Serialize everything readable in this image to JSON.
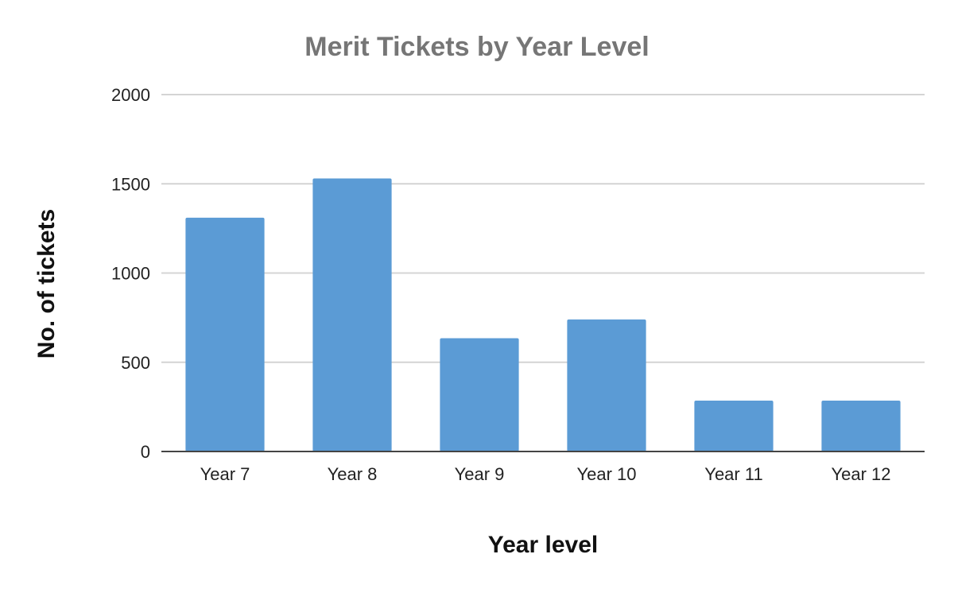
{
  "chart_data": {
    "type": "bar",
    "title": "Merit Tickets by Year Level",
    "xlabel": "Year level",
    "ylabel": "No. of tickets",
    "categories": [
      "Year 7",
      "Year 8",
      "Year 9",
      "Year 10",
      "Year 11",
      "Year 12"
    ],
    "values": [
      1310,
      1530,
      635,
      740,
      285,
      285
    ],
    "ylim": [
      0,
      2000
    ],
    "yticks": [
      "0",
      "500",
      "1000",
      "1500",
      "2000"
    ],
    "grid": true,
    "legend": "none",
    "bar_color": "#5b9bd5"
  }
}
